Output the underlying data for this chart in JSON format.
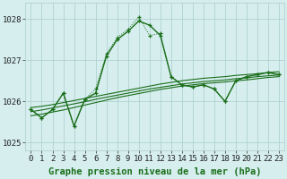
{
  "xlabel": "Graphe pression niveau de la mer (hPa)",
  "x": [
    0,
    1,
    2,
    3,
    4,
    5,
    6,
    7,
    8,
    9,
    10,
    11,
    12,
    13,
    14,
    15,
    16,
    17,
    18,
    19,
    20,
    21,
    22,
    23
  ],
  "y_main": [
    1025.8,
    1025.6,
    1025.8,
    1026.2,
    1025.4,
    1026.05,
    1026.2,
    1027.1,
    1027.5,
    1027.7,
    1027.95,
    1027.85,
    1027.6,
    1026.6,
    1026.4,
    1026.35,
    1026.4,
    1026.3,
    1026.0,
    1026.5,
    1026.6,
    1026.65,
    1026.7,
    1026.65
  ],
  "y_dotted": [
    1025.8,
    1025.6,
    1025.8,
    1026.2,
    1025.4,
    1026.05,
    1026.3,
    1027.15,
    1027.55,
    1027.75,
    1028.05,
    1027.6,
    1027.65,
    1026.6,
    1026.4,
    1026.35,
    1026.4,
    1026.3,
    1026.0,
    1026.5,
    1026.6,
    1026.65,
    1026.7,
    1026.65
  ],
  "y_trend1": [
    1025.85,
    1025.88,
    1025.92,
    1025.97,
    1026.02,
    1026.07,
    1026.12,
    1026.17,
    1026.22,
    1026.27,
    1026.32,
    1026.37,
    1026.42,
    1026.46,
    1026.5,
    1026.53,
    1026.56,
    1026.58,
    1026.6,
    1026.63,
    1026.65,
    1026.67,
    1026.7,
    1026.72
  ],
  "y_trend2": [
    1025.75,
    1025.79,
    1025.84,
    1025.89,
    1025.94,
    1025.99,
    1026.05,
    1026.1,
    1026.15,
    1026.2,
    1026.25,
    1026.3,
    1026.34,
    1026.38,
    1026.42,
    1026.45,
    1026.48,
    1026.5,
    1026.52,
    1026.55,
    1026.57,
    1026.6,
    1026.62,
    1026.64
  ],
  "y_trend3": [
    1025.65,
    1025.69,
    1025.74,
    1025.79,
    1025.85,
    1025.91,
    1025.97,
    1026.03,
    1026.09,
    1026.14,
    1026.19,
    1026.24,
    1026.29,
    1026.33,
    1026.37,
    1026.4,
    1026.43,
    1026.45,
    1026.47,
    1026.5,
    1026.52,
    1026.55,
    1026.58,
    1026.6
  ],
  "ylim": [
    1024.8,
    1028.4
  ],
  "yticks": [
    1025,
    1026,
    1027,
    1028
  ],
  "bg_color": "#d6eeee",
  "grid_color": "#aacccc",
  "line_color": "#1a6e1a",
  "xlabel_fontsize": 7.5,
  "tick_fontsize": 6.5
}
